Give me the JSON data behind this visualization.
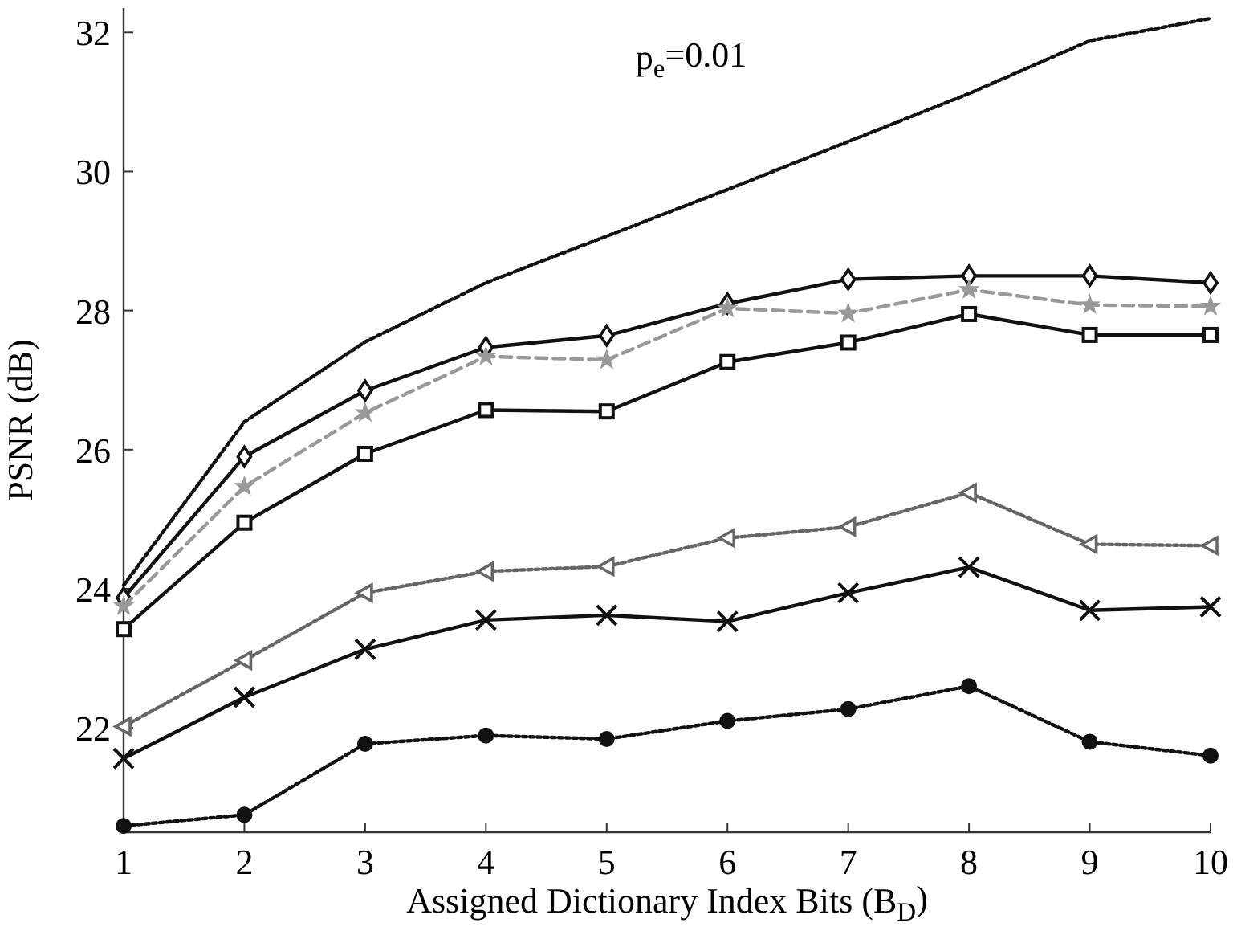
{
  "chart_data": {
    "type": "line",
    "xlabel": "Assigned Dictionary Index Bits (B$_{D}$)",
    "ylabel": "PSNR (dB)",
    "annotations": [
      "p$_{e}$=0.01"
    ],
    "x": [
      1,
      2,
      3,
      4,
      5,
      6,
      7,
      8,
      9,
      10
    ],
    "xlim": [
      1,
      10
    ],
    "xticks": [
      1,
      2,
      3,
      4,
      5,
      6,
      7,
      8,
      9,
      10
    ],
    "ylim": [
      20.5,
      32.35
    ],
    "yticks": [
      22,
      24,
      26,
      28,
      30,
      32
    ],
    "grid": false,
    "series": [
      {
        "color": "#111111",
        "marker": "none",
        "line_style": "dotted",
        "values": [
          24.05,
          26.4,
          27.55,
          28.4,
          29.07,
          29.74,
          30.43,
          31.12,
          31.88,
          32.2
        ]
      },
      {
        "color": "#111111",
        "marker": "diamond",
        "line_style": "solid",
        "values": [
          23.87,
          25.9,
          26.85,
          27.47,
          27.64,
          28.1,
          28.45,
          28.5,
          28.5,
          28.4
        ]
      },
      {
        "color": "#999999",
        "marker": "star",
        "line_style": "dashed",
        "values": [
          23.75,
          25.47,
          26.53,
          27.34,
          27.29,
          28.03,
          27.96,
          28.3,
          28.08,
          28.06
        ]
      },
      {
        "color": "#111111",
        "marker": "square",
        "line_style": "solid",
        "values": [
          23.42,
          24.95,
          25.94,
          26.57,
          26.55,
          27.26,
          27.54,
          27.95,
          27.65,
          27.65
        ]
      },
      {
        "color": "#666666",
        "marker": "triangle",
        "line_style": "dotted",
        "values": [
          22.02,
          22.97,
          23.94,
          24.25,
          24.32,
          24.73,
          24.89,
          25.38,
          24.64,
          24.62
        ]
      },
      {
        "color": "#111111",
        "marker": "cross",
        "line_style": "solid",
        "values": [
          21.56,
          22.44,
          23.13,
          23.55,
          23.62,
          23.53,
          23.94,
          24.31,
          23.69,
          23.74
        ]
      },
      {
        "color": "#111111",
        "marker": "circle",
        "line_style": "dotted",
        "values": [
          20.59,
          20.75,
          21.77,
          21.89,
          21.84,
          22.1,
          22.27,
          22.6,
          21.8,
          21.6
        ]
      }
    ]
  }
}
